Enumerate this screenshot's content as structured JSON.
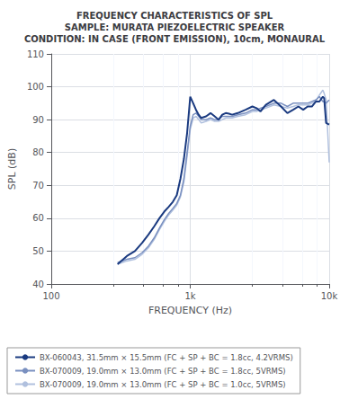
{
  "chart_data": {
    "type": "line",
    "title": "FREQUENCY CHARACTERISTICS OF SPL\nSAMPLE: MURATA PIEZOELECTRIC SPEAKER\nCONDITION: IN CASE (FRONT EMISSION), 10cm, MONAURAL",
    "xlabel": "FREQUENCY (Hz)",
    "ylabel": "SPL (dB)",
    "log": "x",
    "grid": true,
    "legend": "bottom",
    "xlim": [
      100,
      10000
    ],
    "ylim": [
      40,
      110
    ],
    "xticks": [
      {
        "value": 100,
        "label": "100"
      },
      {
        "value": 1000,
        "label": "1k"
      },
      {
        "value": 10000,
        "label": "10k"
      }
    ],
    "yticks": [
      40,
      50,
      60,
      70,
      80,
      90,
      100,
      110
    ],
    "x": [
      300,
      350,
      400,
      450,
      500,
      550,
      600,
      650,
      700,
      750,
      800,
      850,
      900,
      950,
      1000,
      1050,
      1100,
      1150,
      1200,
      1300,
      1400,
      1500,
      1600,
      1700,
      1800,
      1900,
      2000,
      2200,
      2500,
      2800,
      3000,
      3200,
      3500,
      4000,
      4500,
      5000,
      5500,
      6000,
      6500,
      7000,
      7500,
      8000,
      8500,
      9000,
      9200,
      9500,
      10000
    ],
    "series": [
      {
        "name": "BX-060043, 31.5mm × 15.5mm (FC + SP + BC = 1.8cc, 4.2VRMS)",
        "color": "#1a3a80",
        "values": [
          46.0,
          48.5,
          50.0,
          52.5,
          55.0,
          57.5,
          60.0,
          62.0,
          63.5,
          65.0,
          67.0,
          72.0,
          78.0,
          86.0,
          97.0,
          95.0,
          93.0,
          91.5,
          90.5,
          91.0,
          92.0,
          91.0,
          90.0,
          91.5,
          92.0,
          91.8,
          91.5,
          92.0,
          93.0,
          94.0,
          93.5,
          92.5,
          94.5,
          96.0,
          94.0,
          92.0,
          93.0,
          94.0,
          93.0,
          94.0,
          94.0,
          95.5,
          95.5,
          97.0,
          96.5,
          89.0,
          88.5
        ]
      },
      {
        "name": "BX-070009, 19.0mm × 13.0mm (FC + SP + BC = 1.8cc, 5VRMS)",
        "color": "#7a90c0",
        "values": [
          46.5,
          47.5,
          48.0,
          49.5,
          51.5,
          54.0,
          57.0,
          59.5,
          61.5,
          63.0,
          64.5,
          67.0,
          72.0,
          80.0,
          88.0,
          91.5,
          92.0,
          91.0,
          90.0,
          90.0,
          90.5,
          90.0,
          90.0,
          91.0,
          91.0,
          91.0,
          91.0,
          91.5,
          92.0,
          93.0,
          93.0,
          93.5,
          94.0,
          95.0,
          95.0,
          94.0,
          95.0,
          95.0,
          95.0,
          95.0,
          95.5,
          96.0,
          97.0,
          95.5,
          95.5,
          95.0,
          96.0
        ]
      },
      {
        "name": "BX-070009, 19.0mm × 13.0mm (FC + SP + BC = 1.0cc, 5VRMS)",
        "color": "#b0c0de",
        "values": [
          46.0,
          47.0,
          47.5,
          49.0,
          51.0,
          53.5,
          56.5,
          59.0,
          61.0,
          62.5,
          64.0,
          66.5,
          71.0,
          79.0,
          87.0,
          90.5,
          91.0,
          90.0,
          89.0,
          89.5,
          90.0,
          89.5,
          89.5,
          90.0,
          90.5,
          90.5,
          90.5,
          91.0,
          91.5,
          92.5,
          92.5,
          93.0,
          93.5,
          94.5,
          94.0,
          93.5,
          94.0,
          94.5,
          94.5,
          94.5,
          95.0,
          95.5,
          97.5,
          99.0,
          98.0,
          96.0,
          77.0
        ]
      }
    ]
  }
}
